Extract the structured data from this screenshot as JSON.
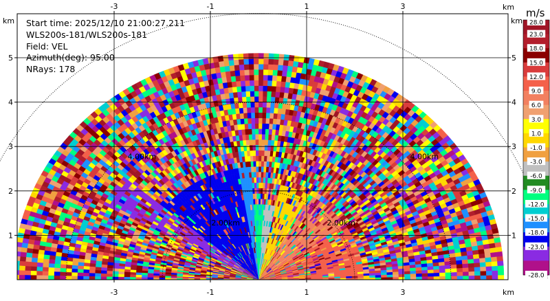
{
  "info": {
    "start_time": "Start time: 2025/12/10 21:00:27.211",
    "instrument": "WLS200s-181/WLS200s-181",
    "field": "Field: VEL",
    "azimuth": "Azimuth(deg): 95.00",
    "nrays": "NRays: 178"
  },
  "chart_data": {
    "type": "heatmap",
    "subtype": "polar-rhi-scan",
    "x_axis": {
      "unit_label": "km",
      "ticks": [
        -3,
        -1,
        1,
        3
      ],
      "range": [
        -5.0,
        5.1
      ]
    },
    "y_axis": {
      "unit_label": "km",
      "ticks": [
        1,
        2,
        3,
        4,
        5
      ],
      "range": [
        0,
        5.6
      ]
    },
    "range_ring_labels": [
      {
        "text": "2.00km",
        "x": -0.98,
        "y": 1.22
      },
      {
        "text": "2.00km",
        "x": 1.42,
        "y": 1.22
      },
      {
        "text": "4.00km",
        "x": -2.72,
        "y": 2.72
      },
      {
        "text": "4.00km",
        "x": 3.15,
        "y": 2.72
      }
    ],
    "max_range_km": 5.1,
    "colorbar": {
      "unit": "m/s",
      "labels": [
        "28.0",
        "23.0",
        "18.0",
        "15.0",
        "12.0",
        "9.0",
        "6.0",
        "3.0",
        "1.0",
        "-1.0",
        "-3.0",
        "-6.0",
        "-9.0",
        "-12.0",
        "-15.0",
        "-18.0",
        "-23.0",
        "-28.0"
      ],
      "colors": [
        "#a01526",
        "#b21e2c",
        "#8b0000",
        "#d93c3c",
        "#f4604a",
        "#f28060",
        "#f0a070",
        "#ffff00",
        "#ffd700",
        "#f0a040",
        "#c0c0c0",
        "#228b22",
        "#00ff7f",
        "#00ced1",
        "#1e90ff",
        "#0000ee",
        "#8a2be2",
        "#b0108a"
      ]
    },
    "grid": true
  }
}
